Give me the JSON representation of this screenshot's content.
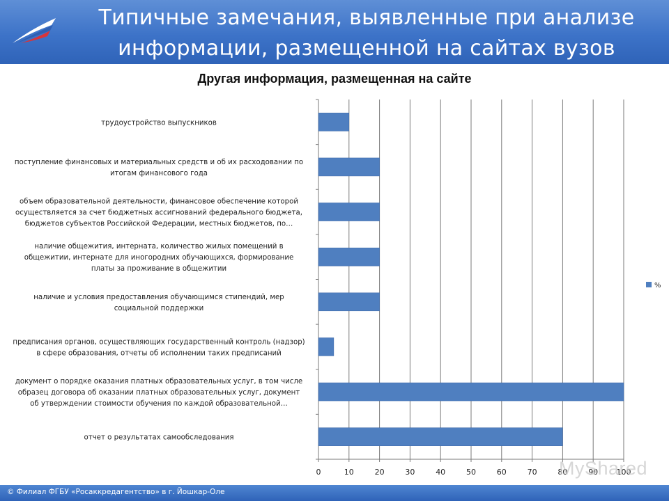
{
  "slide": {
    "title_line1": "Типичные замечания, выявленные при анализе",
    "title_line2": "информации, размещенной на сайтах вузов",
    "footer": "© Филиал ФГБУ «Росаккредагентство» в г. Йошкар-Оле",
    "watermark": "MyShared"
  },
  "colors": {
    "bar": "#4f7fc0",
    "header": "#3d73c8"
  },
  "chart_data": {
    "type": "bar",
    "orientation": "horizontal",
    "title": "Другая информация, размещенная на сайте",
    "legend": {
      "position": "right",
      "entries": [
        "%"
      ]
    },
    "xlim": [
      0,
      100
    ],
    "xticks": [
      "0",
      "10",
      "20",
      "30",
      "40",
      "50",
      "60",
      "70",
      "80",
      "90",
      "100"
    ],
    "grid": true,
    "categories": [
      [
        "трудоустройство выпускников"
      ],
      [
        "поступление финансовых и материальных средств и об их расходовании по",
        "итогам финансового года"
      ],
      [
        "объем образовательной деятельности, финансовое обеспечение которой",
        "осуществляется за счет бюджетных ассигнований федерального бюджета,",
        "бюджетов субъектов Российской Федерации, местных бюджетов, по…"
      ],
      [
        "наличие общежития, интерната, количество жилых помещений в",
        "общежитии, интернате для иногородних обучающихся, формирование",
        "платы за проживание в общежитии"
      ],
      [
        "наличие и условия предоставления обучающимся стипендий, мер",
        "социальной поддержки"
      ],
      [
        "предписания органов, осуществляющих государственный контроль (надзор)",
        "в сфере образования, отчеты об исполнении таких предписаний"
      ],
      [
        "документ о порядке оказания платных образовательных услуг, в том числе",
        "образец договора об оказании платных образовательных услуг, документ",
        "об утверждении стоимости обучения по каждой образовательной…"
      ],
      [
        "отчет о результатах самообследования"
      ]
    ],
    "series": [
      {
        "name": "%",
        "values": [
          10,
          20,
          20,
          20,
          20,
          5,
          100,
          80
        ]
      }
    ]
  }
}
